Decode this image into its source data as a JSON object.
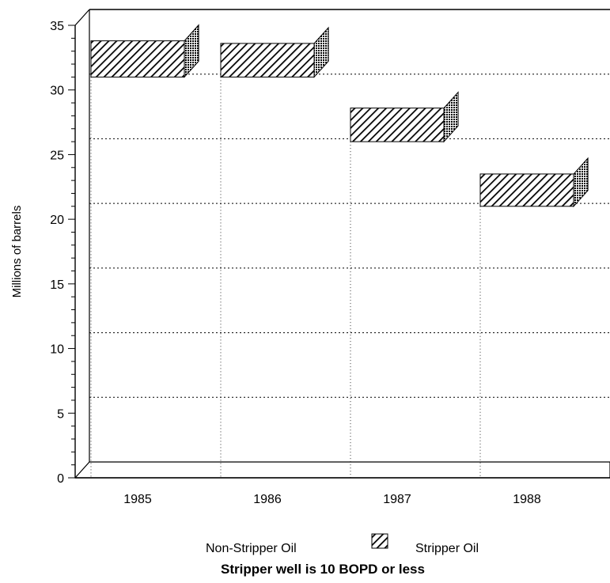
{
  "chart_data": {
    "type": "bar",
    "categories": [
      "1985",
      "1986",
      "1987",
      "1988"
    ],
    "series": [
      {
        "name": "Non-Stripper Oil",
        "values": [
          31,
          31,
          26,
          21
        ],
        "pattern": "none"
      },
      {
        "name": "Stripper Oil",
        "values": [
          2.8,
          2.6,
          2.6,
          2.5
        ],
        "pattern": "hatched"
      }
    ],
    "stacked": true,
    "three_d": true,
    "title": "",
    "ylabel": "Millions of barrels",
    "xlabel": "",
    "ylim": [
      0,
      35
    ],
    "yticks": [
      0,
      5,
      10,
      15,
      20,
      25,
      30,
      35
    ],
    "legend_position": "bottom",
    "note": "Stripper well is 10 BOPD or less",
    "colors": {
      "ink": "#000000",
      "background": "#ffffff"
    }
  }
}
